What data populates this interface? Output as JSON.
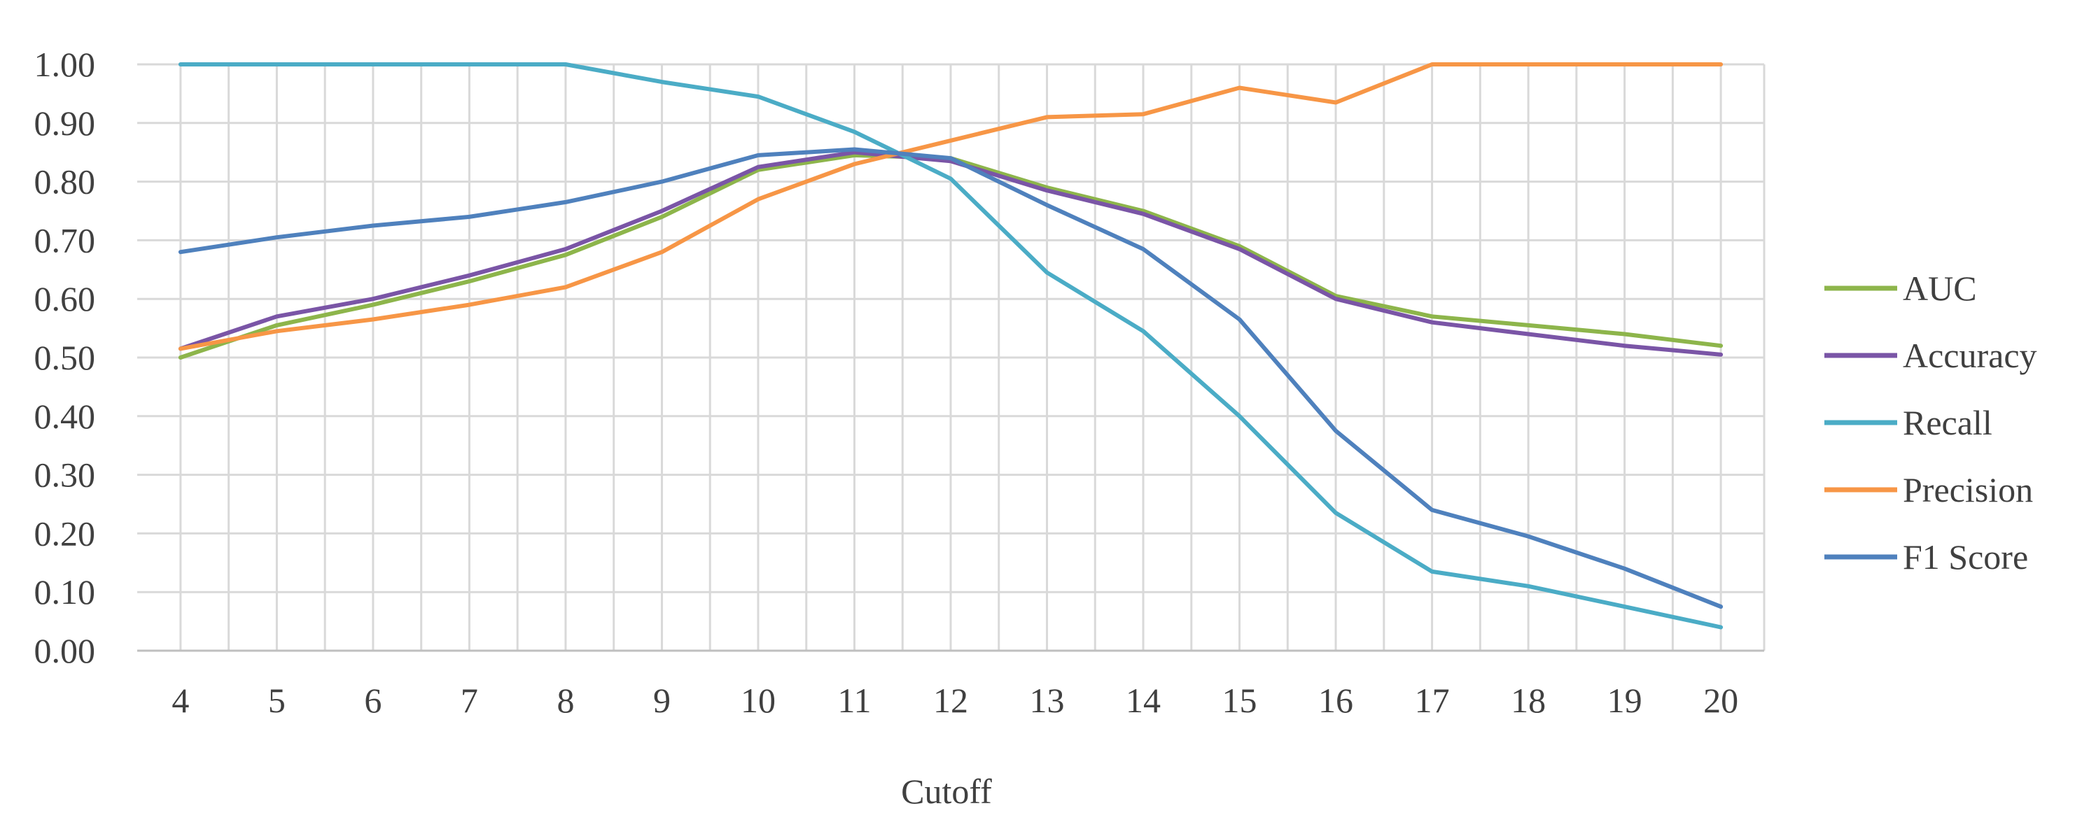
{
  "chart_data": {
    "type": "line",
    "xlabel": "Cutoff",
    "ylabel": "",
    "ylim": [
      0,
      1
    ],
    "y_ticks": [
      "0.00",
      "0.10",
      "0.20",
      "0.30",
      "0.40",
      "0.50",
      "0.60",
      "0.70",
      "0.80",
      "0.90",
      "1.00"
    ],
    "x": [
      4,
      5,
      6,
      7,
      8,
      9,
      10,
      11,
      12,
      13,
      14,
      15,
      16,
      17,
      18,
      19,
      20
    ],
    "grid": true,
    "legend_position": "right",
    "series": [
      {
        "name": "AUC",
        "color": "#8DB54B",
        "values": [
          0.5,
          0.555,
          0.59,
          0.63,
          0.675,
          0.74,
          0.82,
          0.845,
          0.84,
          0.79,
          0.75,
          0.69,
          0.605,
          0.57,
          0.555,
          0.54,
          0.52
        ]
      },
      {
        "name": "Accuracy",
        "color": "#7A55A6",
        "values": [
          0.515,
          0.57,
          0.6,
          0.64,
          0.685,
          0.75,
          0.825,
          0.85,
          0.835,
          0.785,
          0.745,
          0.685,
          0.6,
          0.56,
          0.54,
          0.52,
          0.505
        ]
      },
      {
        "name": "Recall",
        "color": "#4BACC6",
        "values": [
          1.0,
          1.0,
          1.0,
          1.0,
          1.0,
          0.97,
          0.945,
          0.885,
          0.805,
          0.645,
          0.545,
          0.4,
          0.235,
          0.135,
          0.11,
          0.075,
          0.04
        ]
      },
      {
        "name": "Precision",
        "color": "#F79646",
        "values": [
          0.515,
          0.545,
          0.565,
          0.59,
          0.62,
          0.68,
          0.77,
          0.83,
          0.87,
          0.91,
          0.915,
          0.96,
          0.935,
          1.0,
          1.0,
          1.0,
          1.0
        ]
      },
      {
        "name": "F1 Score",
        "color": "#4F81BD",
        "values": [
          0.68,
          0.705,
          0.725,
          0.74,
          0.765,
          0.8,
          0.845,
          0.855,
          0.84,
          0.76,
          0.685,
          0.565,
          0.375,
          0.24,
          0.195,
          0.14,
          0.075
        ]
      }
    ]
  }
}
